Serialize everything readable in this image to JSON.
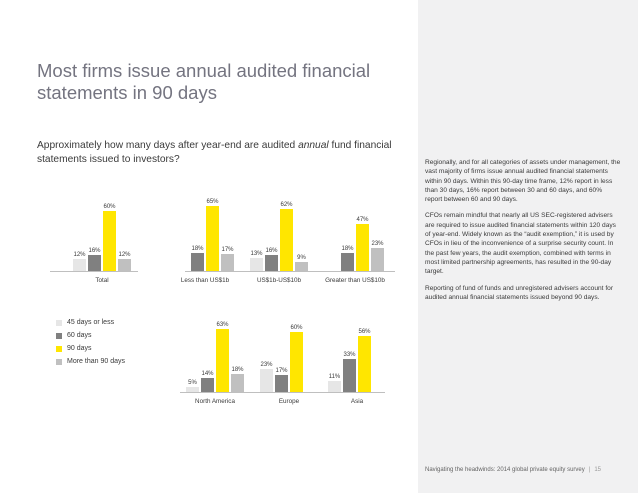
{
  "title": "Most firms issue annual audited financial statements in 90 days",
  "question": {
    "before": "Approximately how many days after year-end are audited ",
    "emphasis": "annual",
    "after": " fund financial statements issued to investors?"
  },
  "body_paragraphs": [
    "Regionally, and for all categories of assets under management, the vast majority of firms issue annual audited financial statements within 90 days. Within this 90-day time frame, 12% report in less than 30 days, 16% report between 30 and 60 days, and 60% report between 60 and 90 days.",
    "CFOs remain mindful that nearly all US SEC-registered advisers are required to issue audited financial statements within 120 days of year-end. Widely known as the “audit exemption,” it is used by CFOs in lieu of the inconvenience of a surprise security count. In the past few years, the audit exemption, combined with terms in most limited partnership agreements, has resulted in the 90-day target.",
    "Reporting of fund of funds and unregistered advisers account for audited annual financial statements issued beyond 90 days."
  ],
  "footer": {
    "text": "Navigating the headwinds: 2014 global private equity survey",
    "page": "15"
  },
  "colors": {
    "sidebar": "#f1f1f2",
    "series_light": "#e6e6e6",
    "series_dark": "#808080",
    "series_yellow": "#ffe600",
    "series_mid": "#c0c0c0"
  },
  "chart_data": {
    "type": "bar",
    "ylim": [
      0,
      70
    ],
    "series": [
      {
        "name": "45 days or less",
        "color": "#e6e6e6"
      },
      {
        "name": "60 days",
        "color": "#808080"
      },
      {
        "name": "90 days",
        "color": "#ffe600"
      },
      {
        "name": "More than 90 days",
        "color": "#c0c0c0"
      }
    ],
    "panels": [
      {
        "categories": [
          "Total"
        ],
        "values": [
          [
            12,
            16,
            60,
            12
          ]
        ]
      },
      {
        "categories": [
          "Less than US$1b",
          "US$1b-US$10b",
          "Greater than US$10b"
        ],
        "values": [
          [
            null,
            18,
            65,
            17
          ],
          [
            13,
            16,
            62,
            9
          ],
          [
            null,
            18,
            47,
            23
          ]
        ]
      },
      {
        "categories": [
          "North America",
          "Europe",
          "Asia"
        ],
        "values": [
          [
            5,
            14,
            63,
            18
          ],
          [
            23,
            17,
            60,
            null
          ],
          [
            11,
            33,
            56,
            null
          ]
        ]
      }
    ]
  }
}
